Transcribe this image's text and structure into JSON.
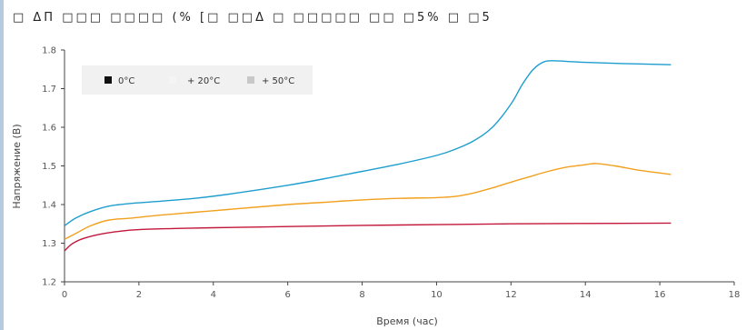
{
  "title": "□ ΔΠ  □□□ □□□□ (% [□ □□Δ □ □□□□□ □□ □5% □ □5",
  "colors": {
    "c0": "#c2183a",
    "c20": "#f2a01f",
    "c50": "#1e9ecf",
    "legend_0": "#111111",
    "legend_20": "#f4f4f4",
    "legend_50": "#c8c8c8"
  },
  "chart_data": {
    "type": "line",
    "xlabel": "Время (час)",
    "ylabel": "Напряжение (В)",
    "xlim": [
      0,
      18
    ],
    "ylim": [
      1.2,
      1.8
    ],
    "xticks": [
      "0",
      "2",
      "4",
      "6",
      "8",
      "10",
      "12",
      "14",
      "16",
      "18"
    ],
    "yticks": [
      "1.2",
      "1.3",
      "1.4",
      "1.5",
      "1.6",
      "1.7",
      "1.8"
    ],
    "legend_position": "top-left",
    "grid": false,
    "series": [
      {
        "name": "0°C",
        "color_key": "c0",
        "x": [
          0,
          0.2,
          0.5,
          1,
          1.5,
          2,
          3,
          4,
          6,
          8,
          10,
          12,
          14,
          16.3
        ],
        "y": [
          1.28,
          1.298,
          1.312,
          1.324,
          1.331,
          1.335,
          1.338,
          1.34,
          1.343,
          1.346,
          1.348,
          1.35,
          1.351,
          1.352
        ]
      },
      {
        "name": "+ 20°C",
        "color_key": "c20",
        "x": [
          0,
          0.3,
          0.7,
          1.2,
          1.8,
          2.5,
          3.5,
          4.5,
          6,
          7,
          8,
          9,
          10,
          10.5,
          11,
          11.5,
          12,
          12.5,
          13,
          13.5,
          14,
          14.3,
          14.8,
          15.5,
          16.3
        ],
        "y": [
          1.31,
          1.325,
          1.345,
          1.36,
          1.365,
          1.372,
          1.38,
          1.388,
          1.4,
          1.406,
          1.412,
          1.416,
          1.418,
          1.421,
          1.43,
          1.443,
          1.458,
          1.472,
          1.486,
          1.497,
          1.503,
          1.506,
          1.5,
          1.488,
          1.478
        ]
      },
      {
        "name": "+ 50°C",
        "color_key": "c50",
        "x": [
          0,
          0.3,
          0.7,
          1.2,
          1.8,
          2.5,
          3.5,
          4.5,
          6,
          7,
          8,
          9,
          10,
          10.5,
          11,
          11.5,
          12,
          12.3,
          12.6,
          12.9,
          13.2,
          13.6,
          14,
          15,
          16.3
        ],
        "y": [
          1.345,
          1.365,
          1.382,
          1.396,
          1.403,
          1.408,
          1.416,
          1.428,
          1.45,
          1.467,
          1.486,
          1.505,
          1.527,
          1.543,
          1.565,
          1.6,
          1.66,
          1.71,
          1.75,
          1.77,
          1.772,
          1.77,
          1.768,
          1.765,
          1.762
        ]
      }
    ]
  }
}
